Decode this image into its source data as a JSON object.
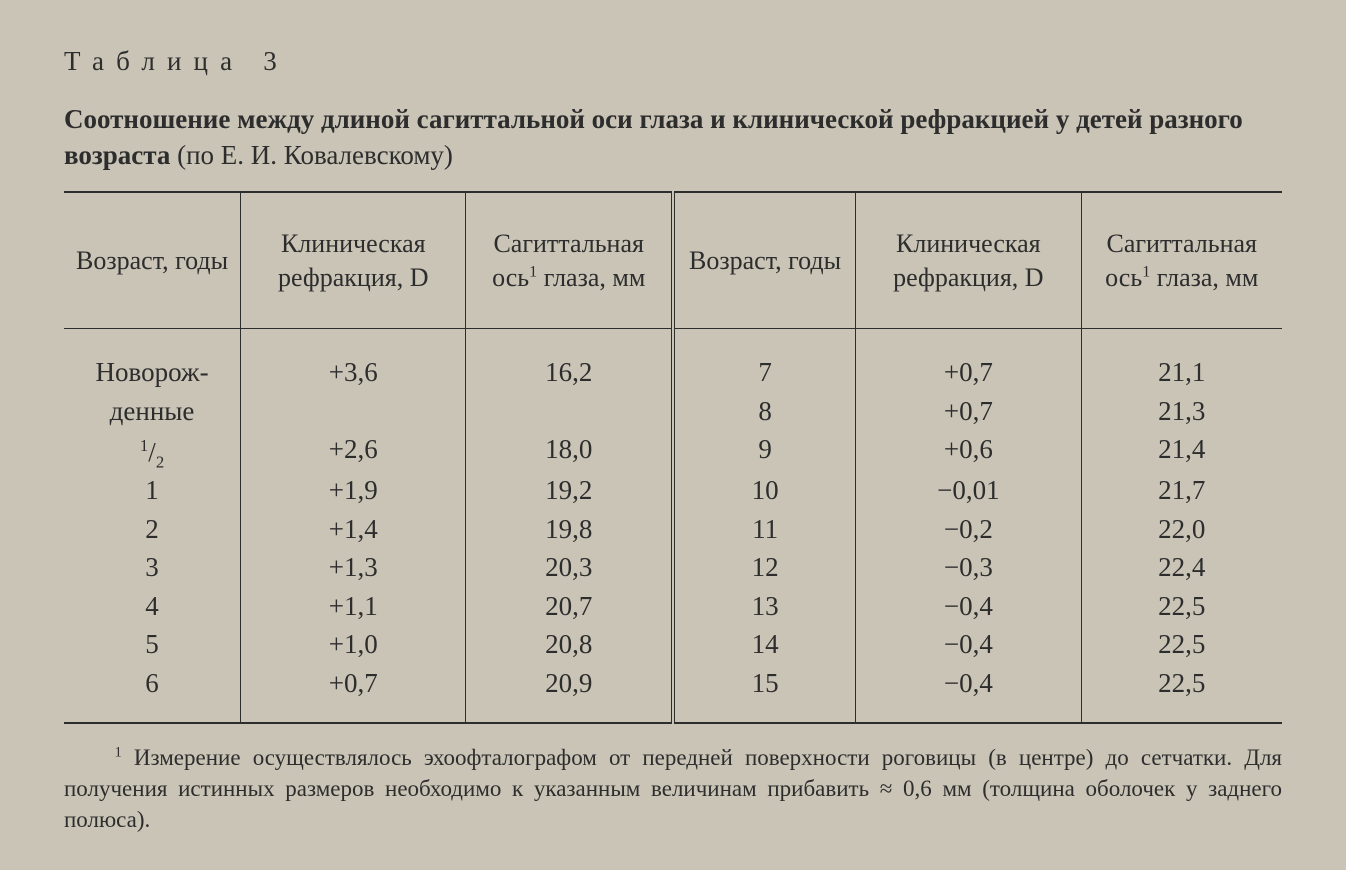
{
  "table_number_prefix": "Таблица",
  "table_number": "3",
  "title_bold": "Соотношение между длиной сагиттальной оси глаза и клинической рефракцией у детей разного возраста",
  "title_light": "(по Е. И. Ковалевскому)",
  "columns": {
    "age": "Возраст, годы",
    "refraction": "Клиническая рефракция, D",
    "axis_prefix": "Сагиттальная ось",
    "axis_suffix": " глаза, мм",
    "footnote_marker": "1"
  },
  "col_widths_percent": [
    14.5,
    18.5,
    17.0,
    15.0,
    18.5,
    16.5
  ],
  "colors": {
    "background": "#c9c4b6",
    "text": "#2d2d2d",
    "rule": "#2d2d2d"
  },
  "left_block": [
    {
      "age": "Новорож-\nденные",
      "refraction": "+3,6",
      "axis": "16,2"
    },
    {
      "age": "1/2",
      "refraction": "+2,6",
      "axis": "18,0"
    },
    {
      "age": "1",
      "refraction": "+1,9",
      "axis": "19,2"
    },
    {
      "age": "2",
      "refraction": "+1,4",
      "axis": "19,8"
    },
    {
      "age": "3",
      "refraction": "+1,3",
      "axis": "20,3"
    },
    {
      "age": "4",
      "refraction": "+1,1",
      "axis": "20,7"
    },
    {
      "age": "5",
      "refraction": "+1,0",
      "axis": "20,8"
    },
    {
      "age": "6",
      "refraction": "+0,7",
      "axis": "20,9"
    }
  ],
  "right_block": [
    {
      "age": "7",
      "refraction": "+0,7",
      "axis": "21,1"
    },
    {
      "age": "8",
      "refraction": "+0,7",
      "axis": "21,3"
    },
    {
      "age": "9",
      "refraction": "+0,6",
      "axis": "21,4"
    },
    {
      "age": "10",
      "refraction": "−0,01",
      "axis": "21,7"
    },
    {
      "age": "11",
      "refraction": "−0,2",
      "axis": "22,0"
    },
    {
      "age": "12",
      "refraction": "−0,3",
      "axis": "22,4"
    },
    {
      "age": "13",
      "refraction": "−0,4",
      "axis": "22,5"
    },
    {
      "age": "14",
      "refraction": "−0,4",
      "axis": "22,5"
    },
    {
      "age": "15",
      "refraction": "−0,4",
      "axis": "22,5"
    }
  ],
  "footnote_marker": "1",
  "footnote_text": "Измерение осуществлялось эхоофталографом от передней поверхности роговицы (в центре) до сетчатки. Для получения истинных размеров необходимо к указанным величинам прибавить ≈ 0,6 мм (толщина оболочек у заднего полюса)."
}
